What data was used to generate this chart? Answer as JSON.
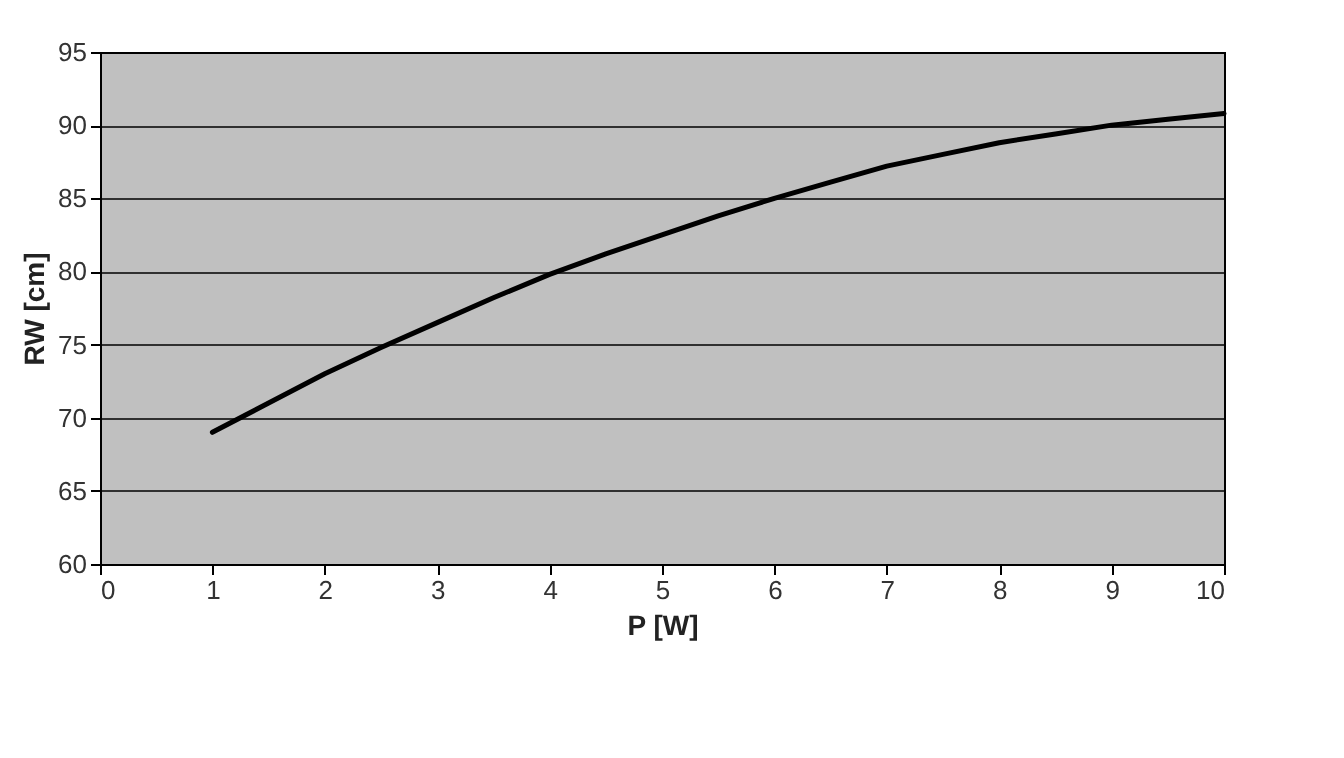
{
  "chart_data": {
    "type": "line",
    "xlabel": "P [W]",
    "ylabel": "RW [cm]",
    "x": [
      1,
      1.5,
      2,
      2.5,
      3,
      3.5,
      4,
      4.5,
      5,
      5.5,
      6,
      6.5,
      7,
      7.5,
      8,
      8.5,
      9,
      9.5,
      10
    ],
    "series": [
      {
        "color": "#000000",
        "values": [
          69,
          71,
          73,
          74.8,
          76.5,
          78.2,
          79.8,
          81.2,
          82.5,
          83.8,
          85,
          86.1,
          87.2,
          88,
          88.8,
          89.4,
          90,
          90.4,
          90.8
        ]
      }
    ],
    "xlim": [
      0,
      10
    ],
    "xticks": [
      0,
      1,
      2,
      3,
      4,
      5,
      6,
      7,
      8,
      9,
      10
    ],
    "ylim": [
      60,
      95
    ],
    "yticks": [
      60,
      65,
      70,
      75,
      80,
      85,
      90,
      95
    ],
    "grid": "y",
    "marker": "none",
    "line_style": "solid"
  }
}
